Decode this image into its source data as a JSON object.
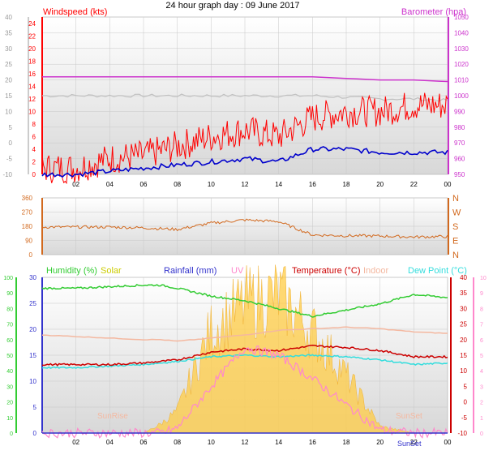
{
  "title": "24 hour graph day : 09 June 2017",
  "colors": {
    "wind": "#ff0000",
    "gust": "#0000cc",
    "baro": "#cc33cc",
    "baro_line": "#c0c0c0",
    "dir": "#d2691e",
    "humidity": "#33cc33",
    "solar": "#ffcc44",
    "solar_label": "#cccc00",
    "rain": "#3333cc",
    "uv": "#ff88cc",
    "temp": "#cc0000",
    "indoor": "#f4b8a0",
    "dew": "#33dddd",
    "bg_top": "#ffffff",
    "bg_bottom": "#d8d8d8",
    "grid": "#c8c8c8"
  },
  "x_ticks": [
    "02",
    "04",
    "06",
    "08",
    "10",
    "12",
    "14",
    "16",
    "18",
    "20",
    "22",
    "00"
  ],
  "panels": {
    "wind": {
      "left_title": "Windspeed (kts)",
      "right_title": "Barometer (hpa)",
      "left_outer_ticks": [
        "40",
        "35",
        "30",
        "25",
        "20",
        "15",
        "10",
        "5",
        "0",
        "-5",
        "-10"
      ],
      "left_inner_ticks": [
        "24",
        "22",
        "20",
        "18",
        "16",
        "14",
        "12",
        "10",
        "8",
        "6",
        "4",
        "2",
        "0"
      ],
      "right_ticks": [
        "1050",
        "1040",
        "1030",
        "1020",
        "1010",
        "1000",
        "990",
        "980",
        "970",
        "960",
        "950"
      ]
    },
    "direction": {
      "left_ticks": [
        "360",
        "270",
        "180",
        "90",
        "0"
      ],
      "right_ticks": [
        "N",
        "W",
        "S",
        "E",
        "N"
      ]
    },
    "climate": {
      "titles": {
        "humidity": "Humidity (%)",
        "solar": "Solar",
        "rain": "Rainfall (mm)",
        "uv": "UV",
        "temp": "Temperature (°C)",
        "indoor": "Indoor",
        "dew": "Dew Point (°C)"
      },
      "humidity_ticks": [
        "100",
        "90",
        "80",
        "70",
        "60",
        "50",
        "40",
        "30",
        "20",
        "10",
        "0"
      ],
      "rain_ticks": [
        "30",
        "25",
        "20",
        "15",
        "10",
        "5",
        "0"
      ],
      "temp_ticks": [
        "40",
        "35",
        "30",
        "25",
        "20",
        "15",
        "10",
        "5",
        "0",
        "-5",
        "-10"
      ],
      "uv_ticks": [
        "10",
        "9",
        "8",
        "7",
        "6",
        "5",
        "4",
        "3",
        "2",
        "1",
        "0"
      ],
      "sunrise": "SunRise",
      "sunset": "SunSet",
      "sunset_time": "SunSet"
    }
  },
  "chart_data": [
    {
      "type": "line",
      "title": "24 hour graph day : 09 June 2017",
      "x": [
        0,
        2,
        4,
        6,
        8,
        10,
        12,
        14,
        16,
        18,
        20,
        22,
        24
      ],
      "series": [
        {
          "name": "Windspeed (kts)",
          "unit": "kts",
          "values": [
            1,
            1,
            2.5,
            3,
            4.5,
            6,
            7,
            6,
            9,
            10,
            10,
            11,
            11
          ]
        },
        {
          "name": "Gust",
          "unit": "kts",
          "values": [
            0,
            0,
            0.5,
            1,
            1.5,
            2,
            2.5,
            2,
            4,
            4,
            3.5,
            3.5,
            3.5
          ]
        },
        {
          "name": "Barometer (hpa)",
          "unit": "hpa",
          "values": [
            1012,
            1012,
            1012,
            1012,
            1012,
            1012,
            1012,
            1012,
            1012,
            1011,
            1010,
            1010,
            1009
          ]
        }
      ],
      "ylim_left": [
        -10,
        40
      ],
      "ylim_right": [
        950,
        1050
      ],
      "ylabel": "Windspeed (kts)",
      "ylabel_right": "Barometer (hpa)"
    },
    {
      "type": "line",
      "x": [
        0,
        2,
        4,
        6,
        8,
        10,
        12,
        14,
        16,
        18,
        20,
        22,
        24
      ],
      "series": [
        {
          "name": "Wind direction",
          "unit": "deg",
          "values": [
            175,
            175,
            175,
            170,
            160,
            200,
            220,
            210,
            125,
            120,
            118,
            112,
            115
          ]
        }
      ],
      "ylim": [
        0,
        360
      ],
      "y_tick_labels": [
        "N",
        "W",
        "S",
        "E",
        "N"
      ]
    },
    {
      "type": "line",
      "x": [
        0,
        2,
        4,
        6,
        7,
        8,
        10,
        12,
        14,
        16,
        18,
        20,
        22,
        24
      ],
      "series": [
        {
          "name": "Humidity (%)",
          "unit": "%",
          "values": [
            93,
            93,
            94,
            95,
            95,
            93,
            88,
            85,
            80,
            75,
            79,
            83,
            89,
            87
          ]
        },
        {
          "name": "Solar",
          "values": [
            0,
            0,
            0,
            0,
            20,
            50,
            230,
            290,
            310,
            230,
            130,
            15,
            0,
            0
          ]
        },
        {
          "name": "Rainfall (mm)",
          "unit": "mm",
          "values": [
            0,
            0,
            0,
            0,
            0,
            0,
            0,
            0,
            0,
            0,
            0,
            0,
            0,
            0
          ]
        },
        {
          "name": "UV",
          "values": [
            0,
            0,
            0,
            0,
            0,
            0.3,
            3,
            5.5,
            5,
            3.5,
            1.8,
            0.2,
            0,
            0
          ]
        },
        {
          "name": "Temperature (°C)",
          "unit": "°C",
          "values": [
            12,
            12,
            12,
            12.5,
            13,
            13.5,
            16,
            17,
            16.5,
            18,
            17.5,
            16.5,
            14.5,
            14.5
          ]
        },
        {
          "name": "Indoor",
          "unit": "°C",
          "values": [
            21.5,
            21,
            20.5,
            20,
            20,
            19.5,
            20.5,
            21.5,
            23,
            23.5,
            24,
            23.5,
            22.5,
            22
          ]
        },
        {
          "name": "Dew Point (°C)",
          "unit": "°C",
          "values": [
            11,
            11,
            11.5,
            12,
            12.5,
            13,
            14.5,
            15,
            14.5,
            15,
            14.5,
            13.5,
            12,
            12.5
          ]
        }
      ],
      "ylim_humidity": [
        0,
        100
      ],
      "ylim_rain": [
        0,
        30
      ],
      "ylim_temp": [
        -10,
        40
      ],
      "ylim_uv": [
        0,
        10
      ]
    }
  ]
}
